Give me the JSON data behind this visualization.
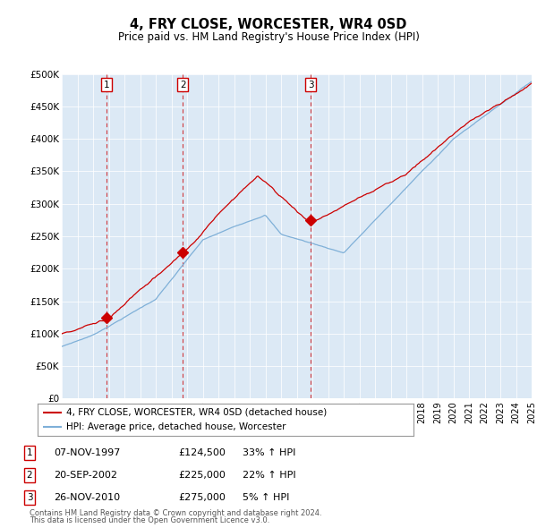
{
  "title": "4, FRY CLOSE, WORCESTER, WR4 0SD",
  "subtitle": "Price paid vs. HM Land Registry's House Price Index (HPI)",
  "plot_bg_color": "#dce9f5",
  "legend_line1": "4, FRY CLOSE, WORCESTER, WR4 0SD (detached house)",
  "legend_line2": "HPI: Average price, detached house, Worcester",
  "sale_color": "#cc0000",
  "hpi_color": "#7fb0d8",
  "transactions": [
    {
      "num": 1,
      "date": "07-NOV-1997",
      "price": 124500,
      "pct": "33%",
      "year": 1997.85
    },
    {
      "num": 2,
      "date": "20-SEP-2002",
      "price": 225000,
      "pct": "22%",
      "year": 2002.72
    },
    {
      "num": 3,
      "date": "26-NOV-2010",
      "price": 275000,
      "pct": "5%",
      "year": 2010.9
    }
  ],
  "footnote1": "Contains HM Land Registry data © Crown copyright and database right 2024.",
  "footnote2": "This data is licensed under the Open Government Licence v3.0.",
  "ylim": [
    0,
    500000
  ],
  "yticks": [
    0,
    50000,
    100000,
    150000,
    200000,
    250000,
    300000,
    350000,
    400000,
    450000,
    500000
  ],
  "xstart": 1995,
  "xend": 2025
}
